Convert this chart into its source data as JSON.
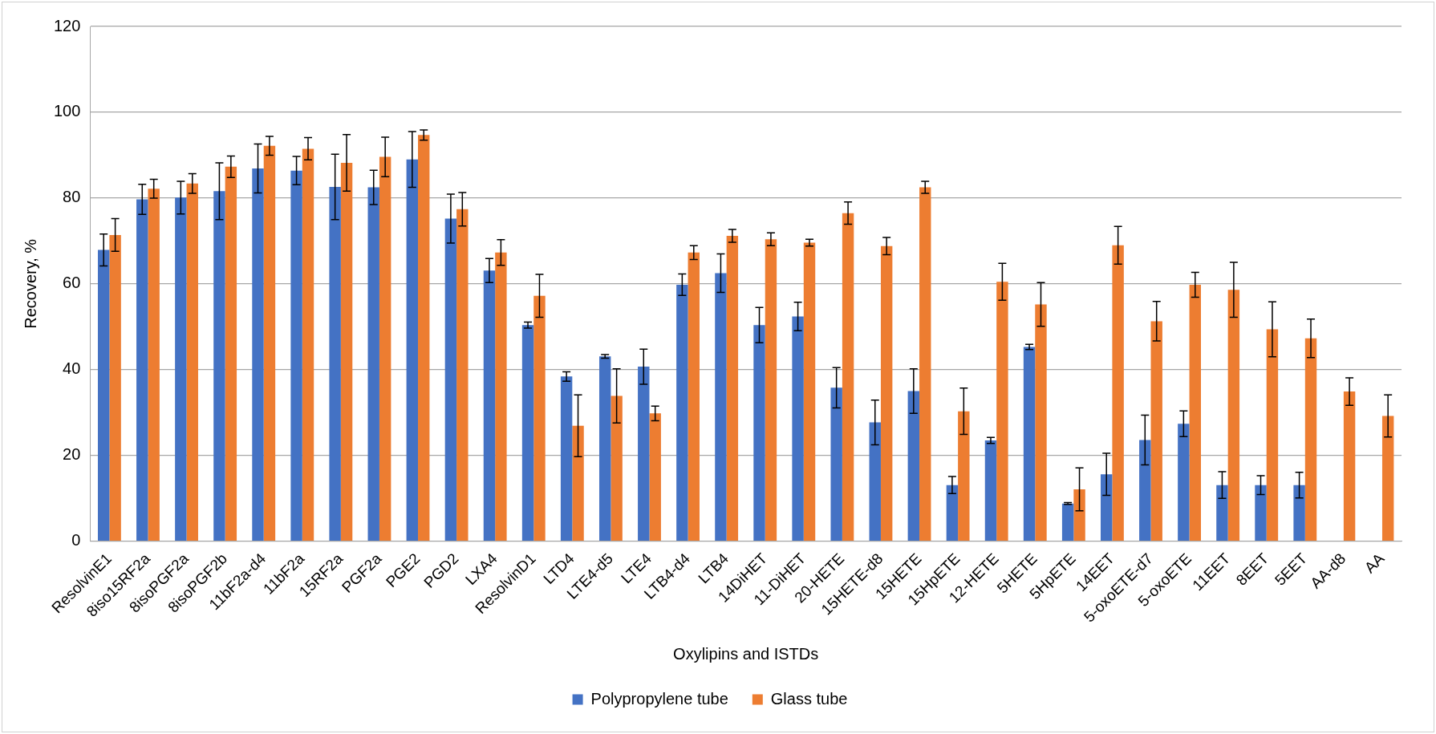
{
  "chart_data": {
    "type": "bar",
    "xlabel": "Oxylipins and ISTDs",
    "ylabel": "Recovery, %",
    "categories": [
      "ResolvinE1",
      "8iso15RF2a",
      "8isoPGF2a",
      "8isoPGF2b",
      "11bF2a-d4",
      "11bF2a",
      "15RF2a",
      "PGF2a",
      "PGE2",
      "PGD2",
      "LXA4",
      "ResolvinD1",
      "LTD4",
      "LTE4-d5",
      "LTE4",
      "LTB4-d4",
      "LTB4",
      "14DiHET",
      "11-DiHET",
      "20-HETE",
      "15HETE-d8",
      "15HETE",
      "15HpETE",
      "12-HETE",
      "5HETE",
      "5HpETE",
      "14EET",
      "5-oxoETE-d7",
      "5-oxoETE",
      "11EET",
      "8EET",
      "5EET",
      "AA-d8",
      "AA"
    ],
    "series": [
      {
        "name": "Polypropylene tube",
        "color": "#4472c4",
        "values": [
          67.9,
          79.7,
          80.1,
          81.6,
          86.9,
          86.4,
          82.6,
          82.5,
          89.0,
          75.2,
          63.1,
          50.4,
          38.4,
          43.1,
          40.7,
          59.8,
          62.5,
          50.4,
          52.4,
          35.8,
          27.7,
          35.0,
          13.1,
          23.5,
          45.3,
          8.8,
          15.6,
          23.6,
          27.4,
          13.1,
          13.1,
          13.1,
          0,
          0
        ],
        "errors": [
          3.7,
          3.5,
          3.8,
          6.6,
          5.7,
          3.3,
          7.6,
          4.0,
          6.5,
          5.7,
          2.8,
          0.7,
          1.1,
          0.4,
          4.1,
          2.5,
          4.5,
          4.1,
          3.3,
          4.7,
          5.2,
          5.2,
          2.0,
          0.7,
          0.6,
          0.2,
          4.9,
          5.8,
          3.0,
          3.1,
          2.2,
          3.0,
          null,
          null
        ]
      },
      {
        "name": "Glass tube",
        "color": "#ed7d31",
        "values": [
          71.4,
          82.2,
          83.4,
          87.3,
          92.2,
          91.5,
          88.2,
          89.6,
          94.7,
          77.4,
          67.3,
          57.2,
          26.9,
          33.9,
          29.8,
          67.3,
          71.2,
          70.4,
          69.6,
          76.5,
          68.8,
          82.5,
          30.3,
          60.5,
          55.2,
          12.1,
          69.0,
          51.3,
          59.8,
          58.6,
          49.4,
          47.3,
          34.9,
          29.2
        ],
        "errors": [
          3.8,
          2.2,
          2.3,
          2.5,
          2.2,
          2.6,
          6.6,
          4.6,
          1.2,
          3.9,
          3.0,
          5.0,
          7.2,
          6.3,
          1.7,
          1.6,
          1.5,
          1.5,
          0.8,
          2.6,
          2.0,
          1.4,
          5.4,
          4.3,
          5.1,
          5.0,
          4.4,
          4.6,
          2.9,
          6.4,
          6.4,
          4.5,
          3.2,
          4.9
        ]
      }
    ],
    "ylim": [
      0,
      120
    ],
    "yticks": [
      0,
      20,
      40,
      60,
      80,
      100,
      120
    ],
    "grid": "y",
    "legend": "bottom"
  }
}
